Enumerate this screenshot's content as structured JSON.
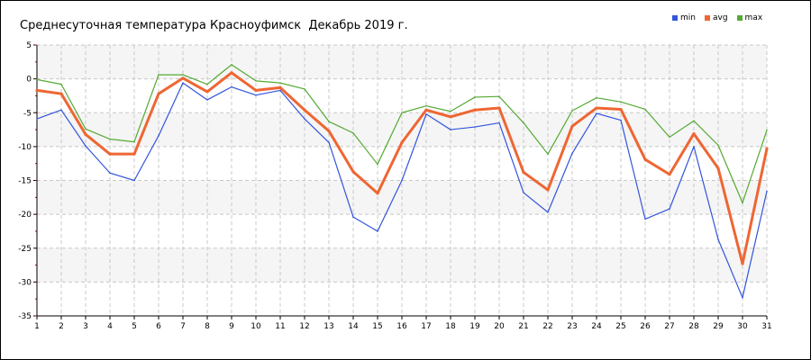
{
  "chart_data": {
    "type": "line",
    "title": "Среднесуточная температура Красноуфимск  Декабрь 2019 г.",
    "xlabel": "",
    "ylabel": "",
    "x": [
      1,
      2,
      3,
      4,
      5,
      6,
      7,
      8,
      9,
      10,
      11,
      12,
      13,
      14,
      15,
      16,
      17,
      18,
      19,
      20,
      21,
      22,
      23,
      24,
      25,
      26,
      27,
      28,
      29,
      30,
      31
    ],
    "xlim": [
      1,
      31
    ],
    "ylim": [
      -35,
      5
    ],
    "yticks": [
      5,
      0,
      -5,
      -10,
      -15,
      -20,
      -25,
      -30,
      -35
    ],
    "grid": true,
    "legend_position": "top-right",
    "series": [
      {
        "name": "min",
        "color": "#3355dd",
        "values": [
          -5.9,
          -4.6,
          -9.9,
          -13.9,
          -15.0,
          -8.4,
          -0.6,
          -3.1,
          -1.2,
          -2.4,
          -1.7,
          -5.9,
          -9.4,
          -20.4,
          -22.5,
          -15.0,
          -5.2,
          -7.5,
          -7.1,
          -6.5,
          -16.8,
          -19.7,
          -11.0,
          -5.1,
          -6.1,
          -20.7,
          -19.2,
          -10.0,
          -23.7,
          -32.3,
          -16.6
        ]
      },
      {
        "name": "avg",
        "color": "#ee6633",
        "values": [
          -1.7,
          -2.2,
          -8.2,
          -11.1,
          -11.1,
          -2.2,
          0.1,
          -1.9,
          0.9,
          -1.7,
          -1.3,
          -4.6,
          -7.7,
          -13.7,
          -16.9,
          -9.4,
          -4.6,
          -5.6,
          -4.6,
          -4.3,
          -13.8,
          -16.4,
          -7.0,
          -4.3,
          -4.5,
          -11.9,
          -14.1,
          -8.1,
          -13.2,
          -27.3,
          -10.3
        ]
      },
      {
        "name": "max",
        "color": "#55aa33",
        "values": [
          -0.1,
          -0.8,
          -7.4,
          -8.9,
          -9.3,
          0.6,
          0.6,
          -0.8,
          2.1,
          -0.3,
          -0.6,
          -1.5,
          -6.3,
          -8.0,
          -12.6,
          -5.0,
          -4.0,
          -4.8,
          -2.7,
          -2.6,
          -6.5,
          -11.1,
          -4.7,
          -2.8,
          -3.4,
          -4.5,
          -8.6,
          -6.2,
          -9.8,
          -18.3,
          -7.6
        ]
      }
    ]
  }
}
